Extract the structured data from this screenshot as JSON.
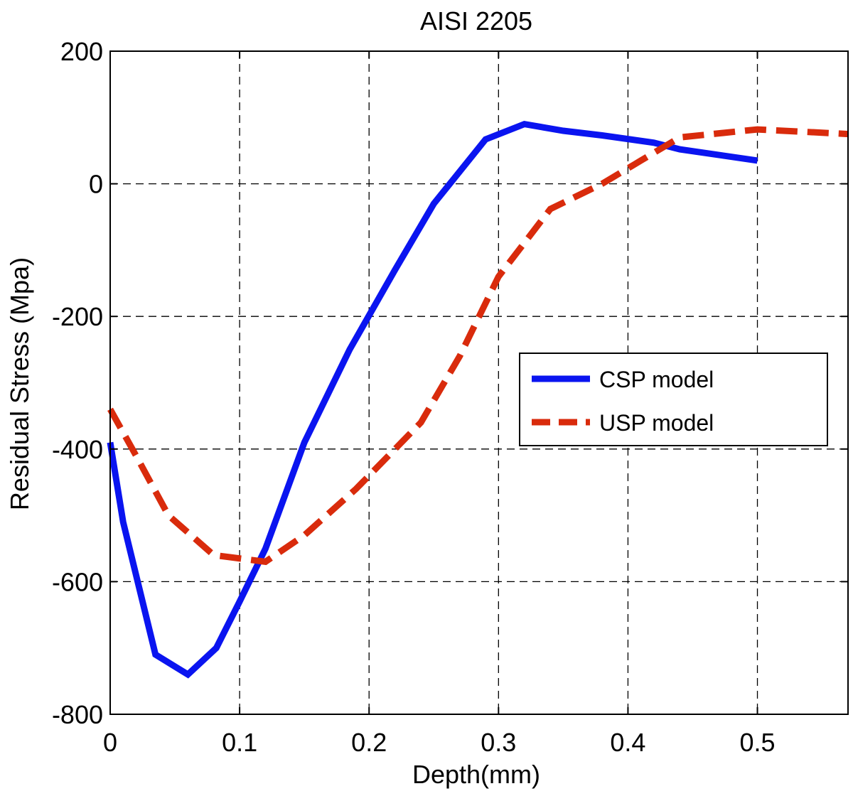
{
  "chart_data": {
    "type": "line",
    "title": "AISI 2205",
    "xlabel": "Depth(mm)",
    "ylabel": "Residual Stress (Mpa)",
    "xlim": [
      0,
      0.57
    ],
    "ylim": [
      -800,
      200
    ],
    "xticks": [
      0,
      0.1,
      0.2,
      0.3,
      0.4,
      0.5
    ],
    "yticks": [
      -800,
      -600,
      -400,
      -200,
      0,
      200
    ],
    "xtick_labels": [
      "0",
      "0.1",
      "0.2",
      "0.3",
      "0.4",
      "0.5"
    ],
    "ytick_labels": [
      "-800",
      "-600",
      "-400",
      "-200",
      "0",
      "200"
    ],
    "grid": true,
    "legend_position": "right",
    "series": [
      {
        "name": "CSP model",
        "color": "#0a14f0",
        "style": "solid",
        "x": [
          0,
          0.01,
          0.035,
          0.06,
          0.082,
          0.1,
          0.12,
          0.15,
          0.185,
          0.22,
          0.25,
          0.29,
          0.32,
          0.35,
          0.38,
          0.42,
          0.44,
          0.5
        ],
        "y": [
          -390,
          -510,
          -710,
          -740,
          -700,
          -630,
          -550,
          -390,
          -250,
          -130,
          -30,
          67,
          90,
          80,
          73,
          62,
          52,
          35
        ]
      },
      {
        "name": "USP model",
        "color": "#d92b0c",
        "style": "dashed",
        "x": [
          0,
          0.02,
          0.045,
          0.08,
          0.12,
          0.15,
          0.19,
          0.24,
          0.27,
          0.3,
          0.34,
          0.38,
          0.41,
          0.44,
          0.5,
          0.57
        ],
        "y": [
          -340,
          -410,
          -500,
          -560,
          -570,
          -530,
          -460,
          -360,
          -260,
          -140,
          -38,
          0,
          35,
          70,
          82,
          75
        ]
      }
    ]
  }
}
